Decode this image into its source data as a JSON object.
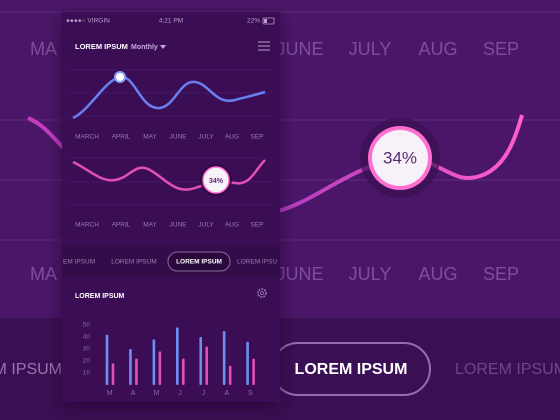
{
  "status_bar": {
    "carrier": "●●●●○ VIRGIN",
    "time": "4:21 PM",
    "battery": "22%"
  },
  "background": {
    "months_top": [
      "MA",
      "JUNE",
      "JULY",
      "AUG",
      "SEP"
    ],
    "months_bottom": [
      "MA",
      "JUNE",
      "JULY",
      "AUG",
      "SEP"
    ],
    "percent": "34%",
    "tabs": [
      "LOREM IPSUM",
      "LOREM IPSUM",
      "LOREM IPSUM"
    ]
  },
  "app": {
    "title": "LOREM IPSUM",
    "period": "Monthly",
    "months_1": [
      "MARCH",
      "APRIL",
      "MAY",
      "JUNE",
      "JULY",
      "AUG",
      "SEP"
    ],
    "months_2": [
      "MARCH",
      "APRIL",
      "MAY",
      "JUNE",
      "JULY",
      "AUG",
      "SEP"
    ],
    "percent": "34%",
    "tabs": [
      "EM IPSUM",
      "LOREM IPSUM",
      "LOREM IPSUM",
      "LOREM IPSU"
    ],
    "panel_title": "LOREM IPSUM"
  },
  "chart_data": {
    "type": "bar",
    "categories": [
      "M",
      "A",
      "M",
      "J",
      "J",
      "A",
      "S"
    ],
    "series": [
      {
        "color": "#6f8ff0",
        "values": [
          42,
          30,
          38,
          48,
          40,
          45,
          36
        ]
      },
      {
        "color": "#e050b8",
        "values": [
          18,
          22,
          28,
          22,
          32,
          16,
          22
        ]
      }
    ],
    "ylim": [
      0,
      50
    ],
    "yticks": [
      10,
      20,
      30,
      40,
      50
    ]
  }
}
